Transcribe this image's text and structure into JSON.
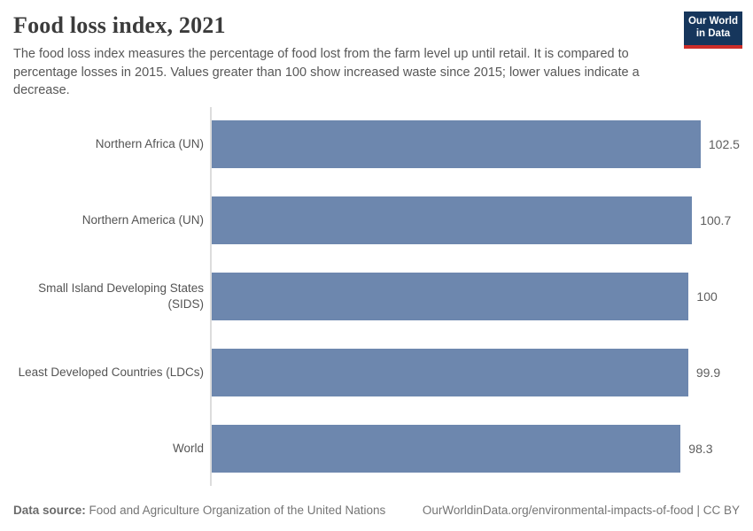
{
  "header": {
    "title": "Food loss index, 2021",
    "subtitle": "The food loss index measures the percentage of food lost from the farm level up until retail. It is compared to percentage losses in 2015. Values greater than 100 show increased waste since 2015; lower values indicate a decrease.",
    "logo": {
      "line1": "Our World",
      "line2": "in Data"
    }
  },
  "chart_data": {
    "type": "bar",
    "orientation": "horizontal",
    "title": "Food loss index, 2021",
    "categories": [
      "Northern Africa (UN)",
      "Northern America (UN)",
      "Small Island Developing States (SIDS)",
      "Least Developed Countries (LDCs)",
      "World"
    ],
    "values": [
      102.5,
      100.7,
      100,
      99.9,
      98.3
    ],
    "value_labels": [
      "102.5",
      "100.7",
      "100",
      "99.9",
      "98.3"
    ],
    "xlabel": "",
    "ylabel": "",
    "xlim": [
      0,
      110
    ],
    "grid": false,
    "legend": "none",
    "bar_color": "#6d87ae"
  },
  "footer": {
    "source_label": "Data source:",
    "source_text": "Food and Agriculture Organization of the United Nations",
    "credit": "OurWorldinData.org/environmental-impacts-of-food | CC BY"
  },
  "colors": {
    "bar": "#6d87ae",
    "logo_background": "#16365c",
    "logo_stripe": "#cd2d29",
    "axis_line": "#dcdcdc",
    "title_text": "#3b3b3b",
    "subtitle_text": "#575757"
  }
}
